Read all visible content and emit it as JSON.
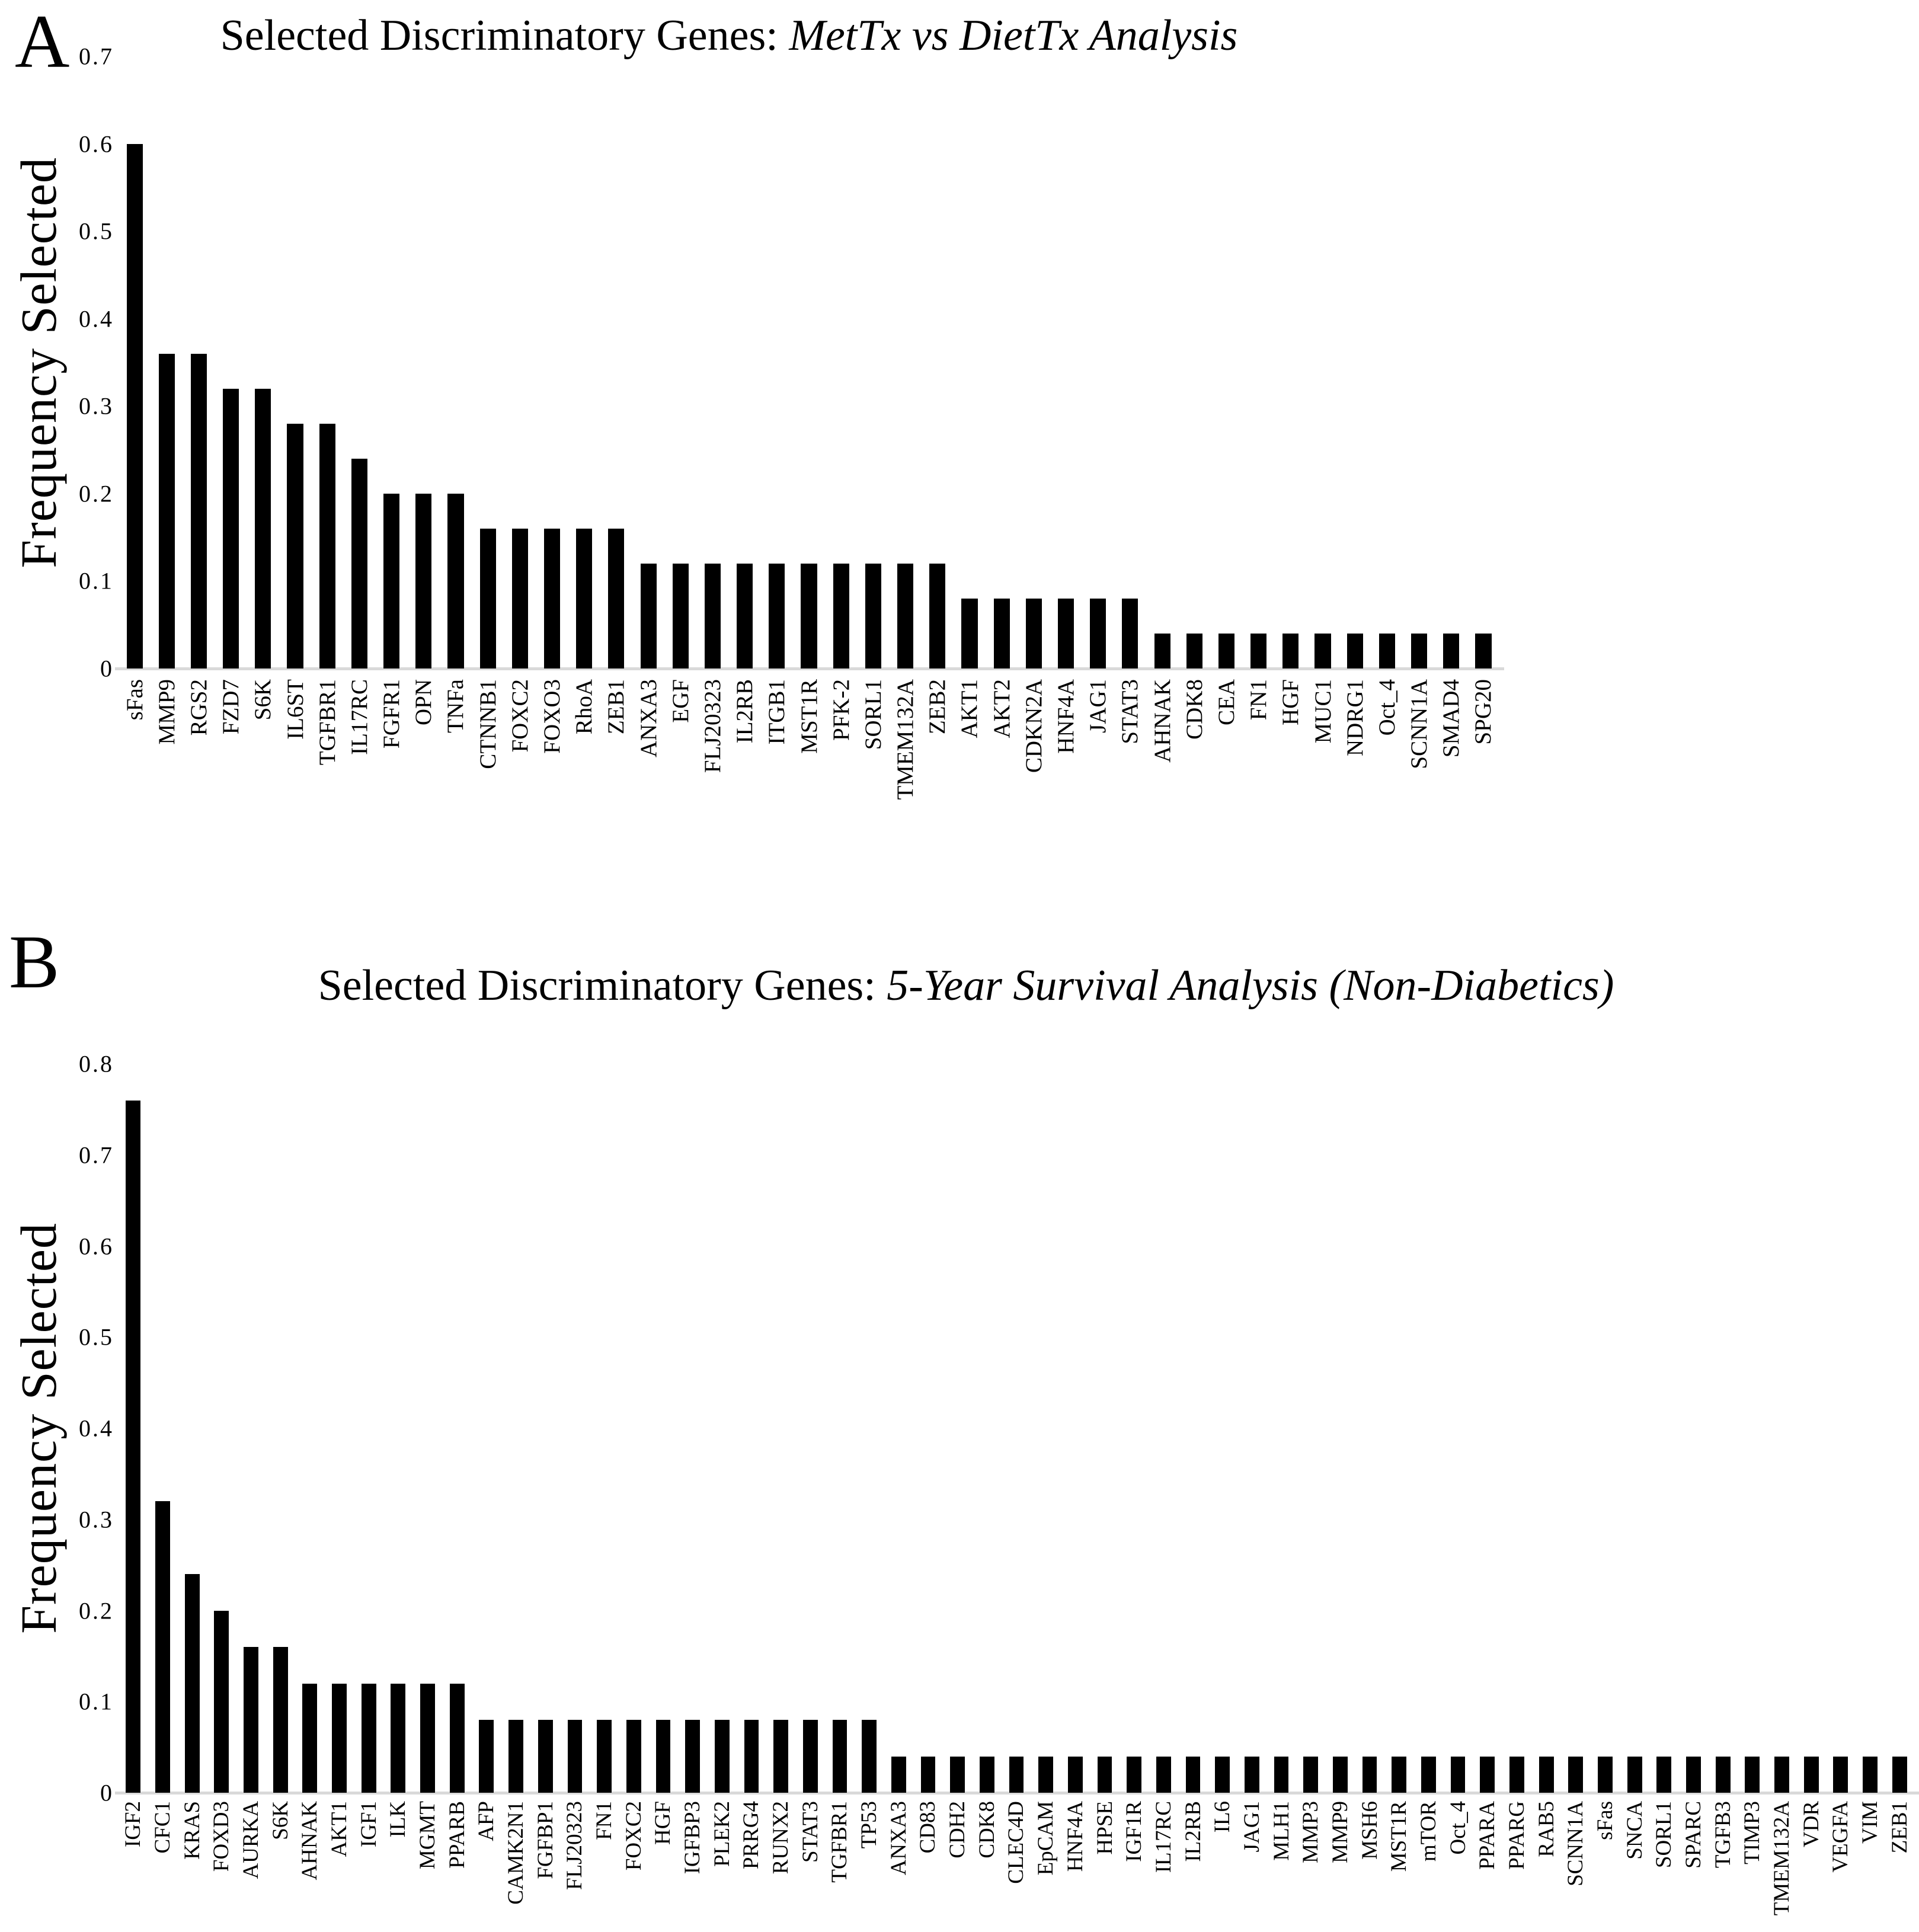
{
  "colors": {
    "bar": "#000000",
    "baseline": "#d9d9d9",
    "text": "#000000",
    "background": "#ffffff"
  },
  "panels": [
    {
      "letter": "A",
      "title_prefix": "Selected Discriminatory Genes: ",
      "title_italic": "MetTx vs DietTx Analysis",
      "ylabel": "Frequency Selected"
    },
    {
      "letter": "B",
      "title_prefix": "Selected Discriminatory Genes: ",
      "title_italic": "5-Year Survival Analysis (Non-Diabetics)",
      "ylabel": "Frequency Selected"
    }
  ],
  "chart_data": [
    {
      "type": "bar",
      "title": "Selected Discriminatory Genes: MetTx vs DietTx Analysis",
      "xlabel": "",
      "ylabel": "Frequency Selected",
      "ylim": [
        0,
        0.7
      ],
      "yticks": [
        "0.7",
        "0.6",
        "0.5",
        "0.4",
        "0.3",
        "0.2",
        "0.1",
        "0"
      ],
      "grid": false,
      "legend": null,
      "bar_color": "#000000",
      "categories": [
        "sFas",
        "MMP9",
        "RGS2",
        "FZD7",
        "S6K",
        "IL6ST",
        "TGFBR1",
        "IL17RC",
        "FGFR1",
        "OPN",
        "TNFa",
        "CTNNB1",
        "FOXC2",
        "FOXO3",
        "RhoA",
        "ZEB1",
        "ANXA3",
        "EGF",
        "FLJ20323",
        "IL2RB",
        "ITGB1",
        "MST1R",
        "PFK-2",
        "SORL1",
        "TMEM132A",
        "ZEB2",
        "AKT1",
        "AKT2",
        "CDKN2A",
        "HNF4A",
        "JAG1",
        "STAT3",
        "AHNAK",
        "CDK8",
        "CEA",
        "FN1",
        "HGF",
        "MUC1",
        "NDRG1",
        "Oct_4",
        "SCNN1A",
        "SMAD4",
        "SPG20"
      ],
      "values": [
        0.6,
        0.36,
        0.36,
        0.32,
        0.32,
        0.28,
        0.28,
        0.24,
        0.2,
        0.2,
        0.2,
        0.16,
        0.16,
        0.16,
        0.16,
        0.16,
        0.12,
        0.12,
        0.12,
        0.12,
        0.12,
        0.12,
        0.12,
        0.12,
        0.12,
        0.12,
        0.08,
        0.08,
        0.08,
        0.08,
        0.08,
        0.08,
        0.04,
        0.04,
        0.04,
        0.04,
        0.04,
        0.04,
        0.04,
        0.04,
        0.04,
        0.04,
        0.04
      ]
    },
    {
      "type": "bar",
      "title": "Selected Discriminatory Genes: 5-Year Survival Analysis (Non-Diabetics)",
      "xlabel": "",
      "ylabel": "Frequency Selected",
      "ylim": [
        0,
        0.8
      ],
      "yticks": [
        "0.8",
        "0.7",
        "0.6",
        "0.5",
        "0.4",
        "0.3",
        "0.2",
        "0.1",
        "0"
      ],
      "grid": false,
      "legend": null,
      "bar_color": "#000000",
      "categories": [
        "IGF2",
        "CFC1",
        "KRAS",
        "FOXD3",
        "AURKA",
        "S6K",
        "AHNAK",
        "AKT1",
        "IGF1",
        "ILK",
        "MGMT",
        "PPARB",
        "AFP",
        "CAMK2N1",
        "FGFBP1",
        "FLJ20323",
        "FN1",
        "FOXC2",
        "HGF",
        "IGFBP3",
        "PLEK2",
        "PRRG4",
        "RUNX2",
        "STAT3",
        "TGFBR1",
        "TP53",
        "ANXA3",
        "CD83",
        "CDH2",
        "CDK8",
        "CLEC4D",
        "EpCAM",
        "HNF4A",
        "HPSE",
        "IGF1R",
        "IL17RC",
        "IL2RB",
        "IL6",
        "JAG1",
        "MLH1",
        "MMP3",
        "MMP9",
        "MSH6",
        "MST1R",
        "mTOR",
        "Oct_4",
        "PPARA",
        "PPARG",
        "RAB5",
        "SCNN1A",
        "sFas",
        "SNCA",
        "SORL1",
        "SPARC",
        "TGFB3",
        "TIMP3",
        "TMEM132A",
        "VDR",
        "VEGFA",
        "VIM",
        "ZEB1"
      ],
      "values": [
        0.76,
        0.32,
        0.24,
        0.2,
        0.16,
        0.16,
        0.12,
        0.12,
        0.12,
        0.12,
        0.12,
        0.12,
        0.08,
        0.08,
        0.08,
        0.08,
        0.08,
        0.08,
        0.08,
        0.08,
        0.08,
        0.08,
        0.08,
        0.08,
        0.08,
        0.08,
        0.04,
        0.04,
        0.04,
        0.04,
        0.04,
        0.04,
        0.04,
        0.04,
        0.04,
        0.04,
        0.04,
        0.04,
        0.04,
        0.04,
        0.04,
        0.04,
        0.04,
        0.04,
        0.04,
        0.04,
        0.04,
        0.04,
        0.04,
        0.04,
        0.04,
        0.04,
        0.04,
        0.04,
        0.04,
        0.04,
        0.04,
        0.04,
        0.04,
        0.04,
        0.04
      ]
    }
  ]
}
